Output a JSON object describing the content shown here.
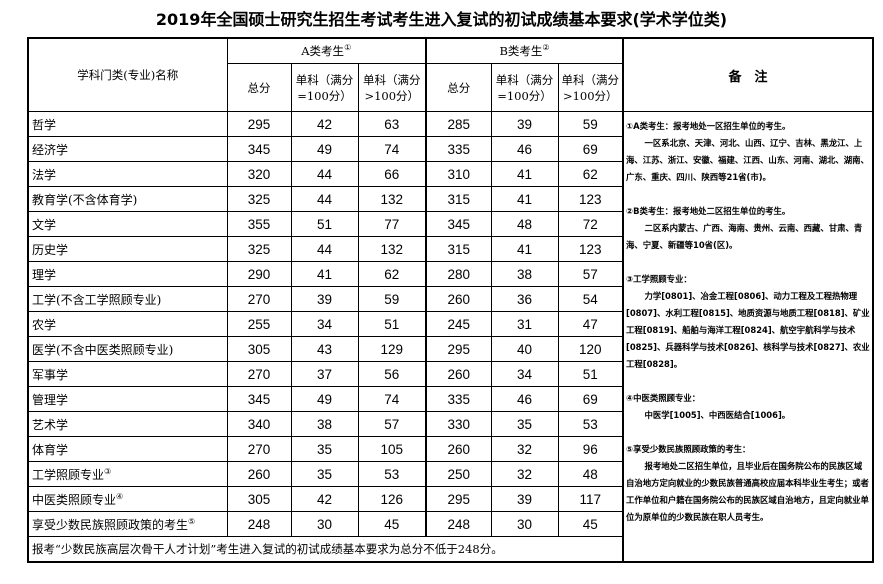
{
  "title": "2019年全国硕士研究生招生考试考生进入复试的初试成绩基本要求(学术学位类)",
  "header": {
    "subject": "学科门类(专业)名称",
    "group_a": "A类考生",
    "group_a_mark": "①",
    "group_b": "B类考生",
    "group_b_mark": "②",
    "total": "总分",
    "single_100": "单科（满分=100分）",
    "single_gt100": "单科（满分>100分）",
    "notes": "备　注"
  },
  "rows": [
    {
      "name": "哲学",
      "mark": "",
      "a": [
        "295",
        "42",
        "63"
      ],
      "b": [
        "285",
        "39",
        "59"
      ]
    },
    {
      "name": "经济学",
      "mark": "",
      "a": [
        "345",
        "49",
        "74"
      ],
      "b": [
        "335",
        "46",
        "69"
      ]
    },
    {
      "name": "法学",
      "mark": "",
      "a": [
        "320",
        "44",
        "66"
      ],
      "b": [
        "310",
        "41",
        "62"
      ]
    },
    {
      "name": "教育学(不含体育学)",
      "mark": "",
      "a": [
        "325",
        "44",
        "132"
      ],
      "b": [
        "315",
        "41",
        "123"
      ]
    },
    {
      "name": "文学",
      "mark": "",
      "a": [
        "355",
        "51",
        "77"
      ],
      "b": [
        "345",
        "48",
        "72"
      ]
    },
    {
      "name": "历史学",
      "mark": "",
      "a": [
        "325",
        "44",
        "132"
      ],
      "b": [
        "315",
        "41",
        "123"
      ]
    },
    {
      "name": "理学",
      "mark": "",
      "a": [
        "290",
        "41",
        "62"
      ],
      "b": [
        "280",
        "38",
        "57"
      ]
    },
    {
      "name": "工学(不含工学照顾专业)",
      "mark": "",
      "a": [
        "270",
        "39",
        "59"
      ],
      "b": [
        "260",
        "36",
        "54"
      ]
    },
    {
      "name": "农学",
      "mark": "",
      "a": [
        "255",
        "34",
        "51"
      ],
      "b": [
        "245",
        "31",
        "47"
      ]
    },
    {
      "name": "医学(不含中医类照顾专业)",
      "mark": "",
      "a": [
        "305",
        "43",
        "129"
      ],
      "b": [
        "295",
        "40",
        "120"
      ]
    },
    {
      "name": "军事学",
      "mark": "",
      "a": [
        "270",
        "37",
        "56"
      ],
      "b": [
        "260",
        "34",
        "51"
      ]
    },
    {
      "name": "管理学",
      "mark": "",
      "a": [
        "345",
        "49",
        "74"
      ],
      "b": [
        "335",
        "46",
        "69"
      ]
    },
    {
      "name": "艺术学",
      "mark": "",
      "a": [
        "340",
        "38",
        "57"
      ],
      "b": [
        "330",
        "35",
        "53"
      ]
    },
    {
      "name": "体育学",
      "mark": "",
      "a": [
        "270",
        "35",
        "105"
      ],
      "b": [
        "260",
        "32",
        "96"
      ]
    },
    {
      "name": "工学照顾专业",
      "mark": "③",
      "a": [
        "260",
        "35",
        "53"
      ],
      "b": [
        "250",
        "32",
        "48"
      ]
    },
    {
      "name": "中医类照顾专业",
      "mark": "④",
      "a": [
        "305",
        "42",
        "126"
      ],
      "b": [
        "295",
        "39",
        "117"
      ]
    },
    {
      "name": "享受少数民族照顾政策的考生",
      "mark": "⑤",
      "a": [
        "248",
        "30",
        "45"
      ],
      "b": [
        "248",
        "30",
        "45"
      ]
    }
  ],
  "footer": "报考“少数民族高层次骨干人才计划”考生进入复试的初试成绩基本要求为总分不低于248分。",
  "notes": [
    {
      "head": "①A类考生：报考地处一区招生单位的考生。",
      "body": "一区系北京、天津、河北、山西、辽宁、吉林、黑龙江、上海、江苏、浙江、安徽、福建、江西、山东、河南、湖北、湖南、广东、重庆、四川、陕西等21省(市)。"
    },
    {
      "head": "②B类考生：报考地处二区招生单位的考生。",
      "body": "二区系内蒙古、广西、海南、贵州、云南、西藏、甘肃、青海、宁夏、新疆等10省(区)。"
    },
    {
      "head": "③工学照顾专业：",
      "body": "力学[0801]、冶金工程[0806]、动力工程及工程热物理[0807]、水利工程[0815]、地质资源与地质工程[0818]、矿业工程[0819]、船舶与海洋工程[0824]、航空宇航科学与技术[0825]、兵器科学与技术[0826]、核科学与技术[0827]、农业工程[0828]。"
    },
    {
      "head": "④中医类照顾专业：",
      "body": "中医学[1005]、中西医结合[1006]。"
    },
    {
      "head": "⑤享受少数民族照顾政策的考生：",
      "body": "报考地处二区招生单位，且毕业后在国务院公布的民族区域自治地方定向就业的少数民族普通高校应届本科毕业生考生；或者工作单位和户籍在国务院公布的民族区域自治地方，且定向就业单位为原单位的少数民族在职人员考生。"
    }
  ]
}
